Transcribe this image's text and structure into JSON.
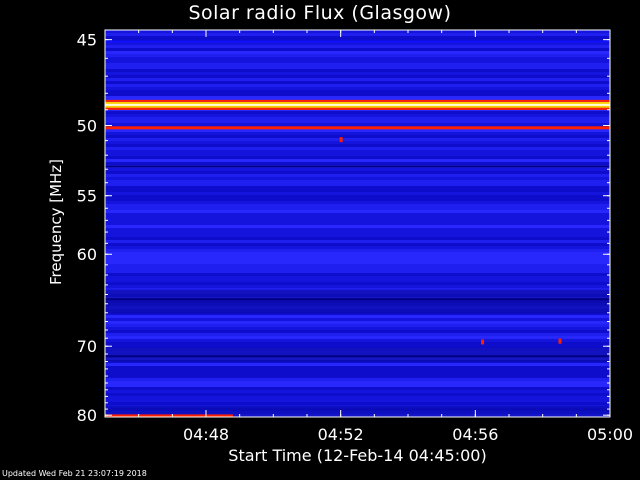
{
  "chart_data": {
    "type": "heatmap",
    "title": "Solar radio Flux (Glasgow)",
    "xlabel": "Start Time (12-Feb-14 04:45:00)",
    "ylabel": "Frequency [MHz]",
    "x_ticks": [
      "04:48",
      "04:52",
      "04:56",
      "05:00"
    ],
    "x_tick_minutes": [
      3,
      7,
      11,
      15
    ],
    "x_range_minutes": [
      0,
      15
    ],
    "y_ticks": [
      45,
      50,
      55,
      60,
      70,
      80
    ],
    "y_range_mhz": [
      44.5,
      80.3
    ],
    "y_scale": "reciprocal",
    "colormap": [
      "#000080",
      "#1010ff",
      "#ff2000",
      "#ffd000",
      "#ffffe0"
    ],
    "bands": [
      {
        "mhz": 45.1,
        "level": 0.3
      },
      {
        "mhz": 48.7,
        "level": 1.0
      },
      {
        "mhz": 50.15,
        "level": 0.65
      },
      {
        "mhz": 52.8,
        "level": 0.08
      },
      {
        "mhz": 64.5,
        "level": 0.05
      },
      {
        "mhz": 71.3,
        "level": 0.06
      }
    ],
    "bursts": [
      {
        "minute": 7.0,
        "mhz": 50.9
      },
      {
        "minute": 13.5,
        "mhz": 69.3
      },
      {
        "minute": 11.2,
        "mhz": 69.4
      }
    ],
    "low_band_start_minutes": [
      0,
      3.8
    ],
    "low_band_mhz": 80.2
  },
  "footer": "Updated Wed Feb 21 23:07:19 2018"
}
